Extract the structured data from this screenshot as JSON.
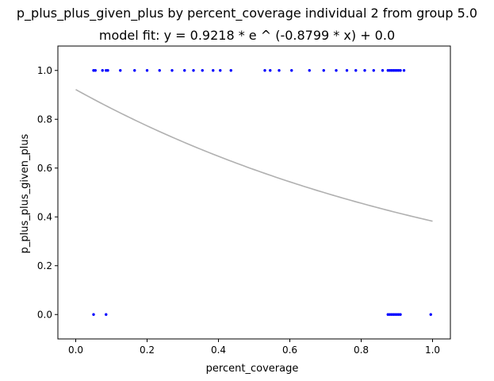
{
  "chart_data": {
    "type": "scatter",
    "title": "p_plus_plus_given_plus by percent_coverage individual 2 from group 5.0",
    "subtitle": "model fit: y = 0.9218 * e ^ (-0.8799 * x) + 0.0",
    "xlabel": "percent_coverage",
    "ylabel": "p_plus_plus_given_plus",
    "xlim": [
      -0.05,
      1.05
    ],
    "ylim": [
      -0.1,
      1.1
    ],
    "xticks": [
      0.0,
      0.2,
      0.4,
      0.6,
      0.8,
      1.0
    ],
    "xtick_labels": [
      "0.0",
      "0.2",
      "0.4",
      "0.6",
      "0.8",
      "1.0"
    ],
    "yticks": [
      0.0,
      0.2,
      0.4,
      0.6,
      0.8,
      1.0
    ],
    "ytick_labels": [
      "0.0",
      "0.2",
      "0.4",
      "0.6",
      "0.8",
      "1.0"
    ],
    "grid": false,
    "points": {
      "color": "#0000ff",
      "x": [
        0.05,
        0.055,
        0.075,
        0.085,
        0.09,
        0.125,
        0.165,
        0.2,
        0.235,
        0.27,
        0.305,
        0.33,
        0.355,
        0.385,
        0.405,
        0.435,
        0.53,
        0.545,
        0.57,
        0.605,
        0.655,
        0.695,
        0.73,
        0.76,
        0.785,
        0.81,
        0.835,
        0.86,
        0.875,
        0.88,
        0.885,
        0.89,
        0.895,
        0.9,
        0.905,
        0.91,
        0.92,
        0.05,
        0.085,
        0.875,
        0.88,
        0.885,
        0.89,
        0.895,
        0.9,
        0.905,
        0.91,
        0.995
      ],
      "y": [
        1,
        1,
        1,
        1,
        1,
        1,
        1,
        1,
        1,
        1,
        1,
        1,
        1,
        1,
        1,
        1,
        1,
        1,
        1,
        1,
        1,
        1,
        1,
        1,
        1,
        1,
        1,
        1,
        1,
        1,
        1,
        1,
        1,
        1,
        1,
        1,
        1,
        0,
        0,
        0,
        0,
        0,
        0,
        0,
        0,
        0,
        0,
        0
      ]
    },
    "fit": {
      "a": 0.9218,
      "b": -0.8799,
      "c": 0.0,
      "x_range": [
        0.0,
        1.0
      ],
      "color": "#b0b0b0"
    }
  }
}
